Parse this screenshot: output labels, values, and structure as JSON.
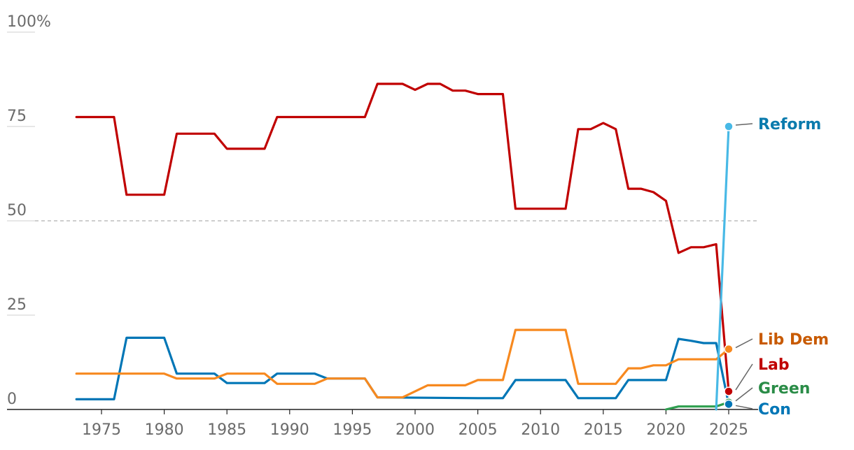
{
  "chart_data": {
    "type": "line",
    "x_range": [
      1970,
      2026
    ],
    "y_range": [
      0,
      100
    ],
    "y_ticks": [
      {
        "value": 100,
        "label": "100%"
      },
      {
        "value": 75,
        "label": "75"
      },
      {
        "value": 50,
        "label": "50"
      },
      {
        "value": 25,
        "label": "25"
      },
      {
        "value": 0,
        "label": "0"
      }
    ],
    "x_ticks": [
      {
        "value": 1975,
        "label": "1975"
      },
      {
        "value": 1980,
        "label": "1980"
      },
      {
        "value": 1985,
        "label": "1985"
      },
      {
        "value": 1990,
        "label": "1990"
      },
      {
        "value": 1995,
        "label": "1995"
      },
      {
        "value": 2000,
        "label": "2000"
      },
      {
        "value": 2005,
        "label": "2005"
      },
      {
        "value": 2010,
        "label": "2010"
      },
      {
        "value": 2015,
        "label": "2015"
      },
      {
        "value": 2020,
        "label": "2020"
      },
      {
        "value": 2025,
        "label": "2025"
      }
    ],
    "reference_line": {
      "value": 50,
      "style": "dashed"
    },
    "series": [
      {
        "name": "Lab",
        "color": "#c00000",
        "points": [
          [
            1973,
            77.5
          ],
          [
            1976,
            77.5
          ],
          [
            1977,
            56.9
          ],
          [
            1980,
            56.9
          ],
          [
            1981,
            73.1
          ],
          [
            1984,
            73.1
          ],
          [
            1985,
            69.1
          ],
          [
            1988,
            69.1
          ],
          [
            1989,
            77.5
          ],
          [
            1996,
            77.5
          ],
          [
            1997,
            86.3
          ],
          [
            1999,
            86.3
          ],
          [
            2000,
            84.7
          ],
          [
            2001,
            86.3
          ],
          [
            2002,
            86.3
          ],
          [
            2003,
            84.5
          ],
          [
            2004,
            84.5
          ],
          [
            2005,
            83.6
          ],
          [
            2007,
            83.6
          ],
          [
            2008,
            53.2
          ],
          [
            2012,
            53.2
          ],
          [
            2013,
            74.3
          ],
          [
            2014,
            74.3
          ],
          [
            2015,
            75.9
          ],
          [
            2016,
            74.3
          ],
          [
            2017,
            58.5
          ],
          [
            2018,
            58.5
          ],
          [
            2019,
            57.6
          ],
          [
            2020,
            55.3
          ],
          [
            2021,
            41.5
          ],
          [
            2022,
            43.0
          ],
          [
            2023,
            43.0
          ],
          [
            2024,
            43.8
          ],
          [
            2025,
            4.8
          ]
        ]
      },
      {
        "name": "Con",
        "color": "#0076b6",
        "points": [
          [
            1973,
            2.7
          ],
          [
            1976,
            2.7
          ],
          [
            1977,
            19.0
          ],
          [
            1980,
            19.0
          ],
          [
            1981,
            9.5
          ],
          [
            1984,
            9.5
          ],
          [
            1985,
            7.0
          ],
          [
            1988,
            7.0
          ],
          [
            1989,
            9.5
          ],
          [
            1992,
            9.5
          ],
          [
            1993,
            8.2
          ],
          [
            1996,
            8.2
          ],
          [
            1997,
            3.2
          ],
          [
            2005,
            3.0
          ],
          [
            2007,
            3.0
          ],
          [
            2008,
            7.8
          ],
          [
            2012,
            7.8
          ],
          [
            2013,
            3.0
          ],
          [
            2016,
            3.0
          ],
          [
            2017,
            7.8
          ],
          [
            2020,
            7.8
          ],
          [
            2021,
            18.7
          ],
          [
            2022,
            18.2
          ],
          [
            2023,
            17.6
          ],
          [
            2024,
            17.6
          ],
          [
            2025,
            1.4
          ]
        ]
      },
      {
        "name": "Lib Dem",
        "color": "#f7891f",
        "points": [
          [
            1973,
            9.5
          ],
          [
            1980,
            9.5
          ],
          [
            1981,
            8.2
          ],
          [
            1984,
            8.2
          ],
          [
            1985,
            9.5
          ],
          [
            1988,
            9.5
          ],
          [
            1989,
            6.8
          ],
          [
            1992,
            6.8
          ],
          [
            1993,
            8.2
          ],
          [
            1996,
            8.2
          ],
          [
            1997,
            3.2
          ],
          [
            1999,
            3.2
          ],
          [
            2001,
            6.4
          ],
          [
            2004,
            6.4
          ],
          [
            2005,
            7.8
          ],
          [
            2007,
            7.8
          ],
          [
            2008,
            21.1
          ],
          [
            2012,
            21.1
          ],
          [
            2013,
            6.8
          ],
          [
            2016,
            6.8
          ],
          [
            2017,
            10.9
          ],
          [
            2018,
            10.9
          ],
          [
            2019,
            11.7
          ],
          [
            2020,
            11.7
          ],
          [
            2021,
            13.3
          ],
          [
            2024,
            13.3
          ],
          [
            2025,
            16.0
          ]
        ]
      },
      {
        "name": "Green",
        "color": "#2e9e4f",
        "points": [
          [
            2020,
            0.0
          ],
          [
            2021,
            0.8
          ],
          [
            2024,
            0.8
          ],
          [
            2025,
            1.9
          ]
        ]
      },
      {
        "name": "Reform",
        "color": "#48b9e6",
        "points": [
          [
            2024,
            0.0
          ],
          [
            2025,
            75.0
          ]
        ]
      }
    ],
    "end_labels": [
      {
        "series": "Reform",
        "text": "Reform",
        "color": "#0b7bad",
        "value": 75.0
      },
      {
        "series": "Lib Dem",
        "text": "Lib Dem",
        "color": "#c85a00",
        "value": 16.0
      },
      {
        "series": "Lab",
        "text": "Lab",
        "color": "#c00000",
        "value": 4.8
      },
      {
        "series": "Green",
        "text": "Green",
        "color": "#2a8c47",
        "value": 1.9
      },
      {
        "series": "Con",
        "text": "Con",
        "color": "#0076b6",
        "value": 1.4
      }
    ]
  }
}
